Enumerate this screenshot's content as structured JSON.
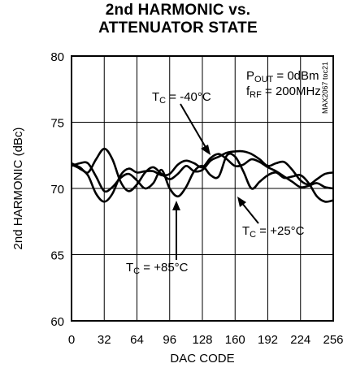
{
  "chart_data": {
    "type": "line",
    "title_lines": [
      "2nd HARMONIC vs.",
      "ATTENUATOR STATE"
    ],
    "xlabel": "DAC CODE",
    "ylabel": "2nd HARMONIC (dBc)",
    "xlim": [
      0,
      256
    ],
    "ylim": [
      60,
      80
    ],
    "xticks": [
      0,
      32,
      64,
      96,
      128,
      160,
      192,
      224,
      256
    ],
    "yticks": [
      60,
      65,
      70,
      75,
      80
    ],
    "grid": true,
    "conditions": [
      {
        "main": "P",
        "sub": "OUT",
        "rest": " = 0dBm"
      },
      {
        "main": "f",
        "sub": "RF",
        "rest": " = 200MHz"
      }
    ],
    "figure_code": "MAX2067 toc21",
    "series": [
      {
        "name": "TC = -40°C",
        "label": {
          "main": "T",
          "sub": "C",
          "rest": " = -40°C"
        },
        "x": [
          0,
          8,
          16,
          24,
          32,
          40,
          48,
          56,
          64,
          72,
          80,
          88,
          96,
          104,
          112,
          120,
          128,
          136,
          144,
          152,
          160,
          168,
          176,
          184,
          192,
          200,
          208,
          216,
          224,
          232,
          240,
          248,
          256
        ],
        "y": [
          71.8,
          71.5,
          71.0,
          69.6,
          69.0,
          69.6,
          71.0,
          71.5,
          71.2,
          71.3,
          71.3,
          71.0,
          71.1,
          71.8,
          72.1,
          71.9,
          71.6,
          72.3,
          72.6,
          72.2,
          71.7,
          71.8,
          72.2,
          72.0,
          71.6,
          71.3,
          70.9,
          70.5,
          70.1,
          70.2,
          70.4,
          70.1,
          70.0
        ]
      },
      {
        "name": "TC = +25°C",
        "label": {
          "main": "T",
          "sub": "C",
          "rest": " = +25°C"
        },
        "x": [
          0,
          8,
          16,
          24,
          32,
          40,
          48,
          56,
          64,
          72,
          80,
          88,
          96,
          104,
          112,
          120,
          128,
          136,
          144,
          152,
          160,
          168,
          176,
          184,
          192,
          200,
          208,
          216,
          224,
          232,
          240,
          248,
          256
        ],
        "y": [
          71.9,
          71.6,
          71.2,
          72.2,
          73.0,
          72.2,
          70.5,
          69.8,
          70.3,
          71.2,
          71.6,
          71.1,
          70.7,
          71.1,
          71.7,
          71.3,
          71.4,
          72.1,
          72.4,
          72.7,
          72.8,
          72.8,
          72.6,
          72.2,
          71.7,
          71.9,
          72.0,
          71.4,
          70.6,
          70.3,
          70.7,
          71.1,
          71.2
        ]
      },
      {
        "name": "TC = +85°C",
        "label": {
          "main": "T",
          "sub": "C",
          "rest": " = +85°C"
        },
        "x": [
          0,
          8,
          16,
          24,
          32,
          40,
          48,
          56,
          64,
          72,
          80,
          88,
          96,
          104,
          112,
          120,
          128,
          136,
          144,
          152,
          160,
          168,
          176,
          184,
          192,
          200,
          208,
          216,
          224,
          232,
          240,
          248,
          256
        ],
        "y": [
          71.7,
          71.9,
          71.9,
          70.9,
          69.8,
          70.1,
          70.8,
          71.1,
          70.6,
          70.0,
          70.4,
          71.4,
          70.0,
          69.4,
          70.1,
          71.3,
          71.7,
          71.0,
          70.9,
          72.5,
          72.4,
          71.3,
          70.0,
          70.5,
          71.0,
          71.2,
          70.8,
          70.9,
          71.0,
          70.4,
          69.4,
          69.0,
          69.1
        ]
      }
    ]
  }
}
